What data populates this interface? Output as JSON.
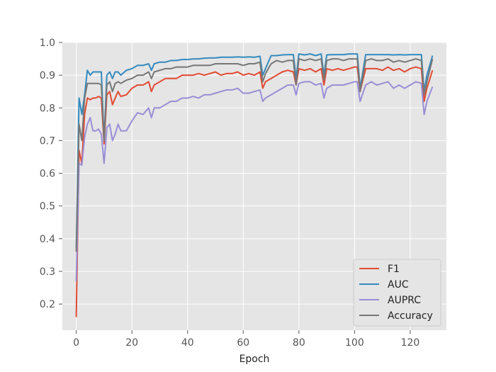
{
  "chart_data": {
    "type": "line",
    "title": "",
    "xlabel": "Epoch",
    "ylabel": "",
    "xlim": [
      -5,
      133
    ],
    "ylim": [
      0.12,
      1.0
    ],
    "xticks": [
      0,
      20,
      40,
      60,
      80,
      100,
      120
    ],
    "yticks": [
      0.2,
      0.3,
      0.4,
      0.5,
      0.6,
      0.7,
      0.8,
      0.9,
      1.0
    ],
    "xtick_labels": [
      "0",
      "20",
      "40",
      "60",
      "80",
      "100",
      "120"
    ],
    "ytick_labels": [
      "0.2",
      "0.3",
      "0.4",
      "0.5",
      "0.6",
      "0.7",
      "0.8",
      "0.9",
      "1.0"
    ],
    "grid": true,
    "legend_position": "lower-right",
    "series": [
      {
        "name": "F1",
        "color": "#e24a33",
        "x": [
          0,
          1,
          2,
          3,
          4,
          5,
          6,
          7,
          8,
          9,
          10,
          11,
          12,
          13,
          14,
          15,
          16,
          18,
          20,
          22,
          24,
          26,
          27,
          28,
          30,
          32,
          34,
          36,
          38,
          40,
          42,
          44,
          46,
          48,
          50,
          52,
          54,
          56,
          58,
          60,
          62,
          64,
          66,
          67,
          68,
          70,
          72,
          74,
          76,
          78,
          79,
          80,
          82,
          84,
          86,
          88,
          89,
          90,
          92,
          94,
          96,
          98,
          100,
          101,
          102,
          104,
          106,
          108,
          110,
          112,
          114,
          116,
          118,
          120,
          122,
          124,
          125,
          126,
          128
        ],
        "values": [
          0.16,
          0.67,
          0.63,
          0.78,
          0.83,
          0.825,
          0.83,
          0.83,
          0.835,
          0.83,
          0.69,
          0.84,
          0.85,
          0.81,
          0.83,
          0.85,
          0.835,
          0.84,
          0.86,
          0.87,
          0.87,
          0.88,
          0.85,
          0.87,
          0.88,
          0.89,
          0.89,
          0.89,
          0.9,
          0.9,
          0.9,
          0.905,
          0.9,
          0.905,
          0.91,
          0.9,
          0.905,
          0.905,
          0.91,
          0.9,
          0.905,
          0.9,
          0.91,
          0.86,
          0.88,
          0.89,
          0.9,
          0.91,
          0.915,
          0.91,
          0.87,
          0.92,
          0.915,
          0.92,
          0.91,
          0.92,
          0.87,
          0.92,
          0.915,
          0.92,
          0.915,
          0.92,
          0.925,
          0.925,
          0.85,
          0.92,
          0.92,
          0.92,
          0.915,
          0.925,
          0.915,
          0.92,
          0.91,
          0.92,
          0.925,
          0.92,
          0.82,
          0.86,
          0.915
        ]
      },
      {
        "name": "AUC",
        "color": "#348abd",
        "x": [
          0,
          1,
          2,
          3,
          4,
          5,
          6,
          7,
          8,
          9,
          10,
          11,
          12,
          13,
          14,
          15,
          16,
          18,
          20,
          22,
          24,
          26,
          27,
          28,
          30,
          32,
          34,
          36,
          38,
          40,
          42,
          44,
          46,
          48,
          50,
          52,
          54,
          56,
          58,
          60,
          62,
          64,
          66,
          67,
          68,
          70,
          72,
          74,
          76,
          78,
          79,
          80,
          82,
          84,
          86,
          88,
          89,
          90,
          92,
          94,
          96,
          98,
          100,
          101,
          102,
          104,
          106,
          108,
          110,
          112,
          114,
          116,
          118,
          120,
          122,
          124,
          125,
          126,
          128
        ],
        "values": [
          0.37,
          0.83,
          0.78,
          0.84,
          0.915,
          0.9,
          0.91,
          0.91,
          0.91,
          0.91,
          0.7,
          0.9,
          0.91,
          0.89,
          0.91,
          0.91,
          0.9,
          0.915,
          0.92,
          0.93,
          0.93,
          0.935,
          0.915,
          0.935,
          0.94,
          0.94,
          0.945,
          0.945,
          0.948,
          0.948,
          0.95,
          0.95,
          0.952,
          0.953,
          0.953,
          0.955,
          0.955,
          0.955,
          0.956,
          0.955,
          0.956,
          0.955,
          0.958,
          0.9,
          0.92,
          0.96,
          0.96,
          0.962,
          0.963,
          0.963,
          0.89,
          0.965,
          0.962,
          0.965,
          0.96,
          0.965,
          0.9,
          0.962,
          0.963,
          0.963,
          0.963,
          0.965,
          0.965,
          0.965,
          0.86,
          0.963,
          0.963,
          0.963,
          0.963,
          0.963,
          0.962,
          0.963,
          0.962,
          0.963,
          0.963,
          0.963,
          0.85,
          0.9,
          0.96
        ]
      },
      {
        "name": "AUPRC",
        "color": "#988ed5",
        "x": [
          0,
          1,
          2,
          3,
          4,
          5,
          6,
          7,
          8,
          9,
          10,
          11,
          12,
          13,
          14,
          15,
          16,
          18,
          20,
          22,
          24,
          26,
          27,
          28,
          30,
          32,
          34,
          36,
          38,
          40,
          42,
          44,
          46,
          48,
          50,
          52,
          54,
          56,
          58,
          60,
          62,
          64,
          66,
          67,
          68,
          70,
          72,
          74,
          76,
          78,
          79,
          80,
          82,
          84,
          86,
          88,
          89,
          90,
          92,
          94,
          96,
          98,
          100,
          101,
          102,
          104,
          106,
          108,
          110,
          112,
          114,
          116,
          118,
          120,
          122,
          124,
          125,
          126,
          128
        ],
        "values": [
          0.27,
          0.63,
          0.625,
          0.71,
          0.75,
          0.77,
          0.73,
          0.73,
          0.735,
          0.72,
          0.63,
          0.74,
          0.75,
          0.7,
          0.72,
          0.75,
          0.73,
          0.73,
          0.76,
          0.785,
          0.78,
          0.8,
          0.77,
          0.8,
          0.8,
          0.81,
          0.82,
          0.82,
          0.83,
          0.83,
          0.835,
          0.83,
          0.84,
          0.84,
          0.845,
          0.85,
          0.855,
          0.855,
          0.86,
          0.845,
          0.845,
          0.85,
          0.855,
          0.82,
          0.83,
          0.84,
          0.85,
          0.86,
          0.87,
          0.87,
          0.84,
          0.875,
          0.88,
          0.88,
          0.87,
          0.875,
          0.83,
          0.86,
          0.87,
          0.87,
          0.87,
          0.875,
          0.88,
          0.88,
          0.82,
          0.87,
          0.88,
          0.87,
          0.875,
          0.88,
          0.86,
          0.87,
          0.86,
          0.87,
          0.88,
          0.875,
          0.78,
          0.82,
          0.865
        ]
      },
      {
        "name": "Accuracy",
        "color": "#777777",
        "x": [
          0,
          1,
          2,
          3,
          4,
          5,
          6,
          7,
          8,
          9,
          10,
          11,
          12,
          13,
          14,
          15,
          16,
          18,
          20,
          22,
          24,
          26,
          27,
          28,
          30,
          32,
          34,
          36,
          38,
          40,
          42,
          44,
          46,
          48,
          50,
          52,
          54,
          56,
          58,
          60,
          62,
          64,
          66,
          67,
          68,
          70,
          72,
          74,
          76,
          78,
          79,
          80,
          82,
          84,
          86,
          88,
          89,
          90,
          92,
          94,
          96,
          98,
          100,
          101,
          102,
          104,
          106,
          108,
          110,
          112,
          114,
          116,
          118,
          120,
          122,
          124,
          125,
          126,
          128
        ],
        "values": [
          0.36,
          0.75,
          0.7,
          0.83,
          0.875,
          0.875,
          0.875,
          0.875,
          0.875,
          0.87,
          0.7,
          0.87,
          0.88,
          0.85,
          0.875,
          0.88,
          0.875,
          0.885,
          0.89,
          0.9,
          0.9,
          0.91,
          0.89,
          0.91,
          0.915,
          0.92,
          0.92,
          0.925,
          0.925,
          0.925,
          0.93,
          0.93,
          0.93,
          0.93,
          0.935,
          0.935,
          0.935,
          0.935,
          0.935,
          0.93,
          0.935,
          0.935,
          0.94,
          0.88,
          0.905,
          0.935,
          0.945,
          0.94,
          0.945,
          0.945,
          0.87,
          0.95,
          0.945,
          0.95,
          0.945,
          0.95,
          0.885,
          0.945,
          0.95,
          0.95,
          0.945,
          0.95,
          0.95,
          0.95,
          0.85,
          0.945,
          0.95,
          0.945,
          0.945,
          0.95,
          0.94,
          0.945,
          0.94,
          0.945,
          0.95,
          0.945,
          0.84,
          0.88,
          0.95
        ]
      }
    ]
  }
}
